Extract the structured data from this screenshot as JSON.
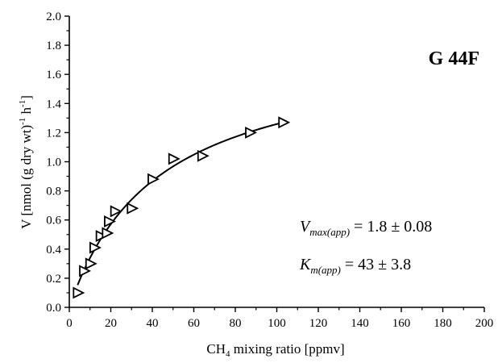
{
  "chart_data": {
    "type": "scatter",
    "title": "",
    "sample_label": "G 44F",
    "xlabel": {
      "main": "CH",
      "sub": "4",
      "rest": " mixing ratio [ppmv]"
    },
    "ylabel": {
      "a": "V [nmol (g dry wt)",
      "sup1": "-1",
      "b": " h",
      "sup2": "-1",
      "c": "]"
    },
    "xlim": [
      0,
      200
    ],
    "ylim": [
      0,
      2.0
    ],
    "xticks": [
      "0",
      "20",
      "40",
      "60",
      "80",
      "100",
      "120",
      "140",
      "160",
      "180",
      "200"
    ],
    "yticks": [
      "0.0",
      "0.2",
      "0.4",
      "0.6",
      "0.8",
      "1.0",
      "1.2",
      "1.4",
      "1.6",
      "1.8",
      "2.0"
    ],
    "grid": false,
    "marker": "open-right-triangle",
    "series": [
      {
        "points": [
          {
            "x": 4,
            "y": 0.1
          },
          {
            "x": 7,
            "y": 0.25
          },
          {
            "x": 10,
            "y": 0.3
          },
          {
            "x": 12,
            "y": 0.41
          },
          {
            "x": 15,
            "y": 0.49
          },
          {
            "x": 18,
            "y": 0.51
          },
          {
            "x": 19,
            "y": 0.59
          },
          {
            "x": 22,
            "y": 0.66
          },
          {
            "x": 30,
            "y": 0.68
          },
          {
            "x": 40,
            "y": 0.88
          },
          {
            "x": 50,
            "y": 1.02
          },
          {
            "x": 64,
            "y": 1.04
          },
          {
            "x": 87,
            "y": 1.2
          },
          {
            "x": 103,
            "y": 1.27
          }
        ]
      }
    ],
    "fit": {
      "type": "michaelis-menten",
      "vmax": 1.8,
      "km": 43,
      "x_range": [
        4,
        103
      ]
    },
    "annotations": {
      "vmax": {
        "sym": "V",
        "sub": "max(app)",
        "text": " = 1.8 ± 0.08"
      },
      "km": {
        "sym": "K",
        "sub": "m(app)",
        "text": " = 43 ± 3.8"
      }
    }
  }
}
